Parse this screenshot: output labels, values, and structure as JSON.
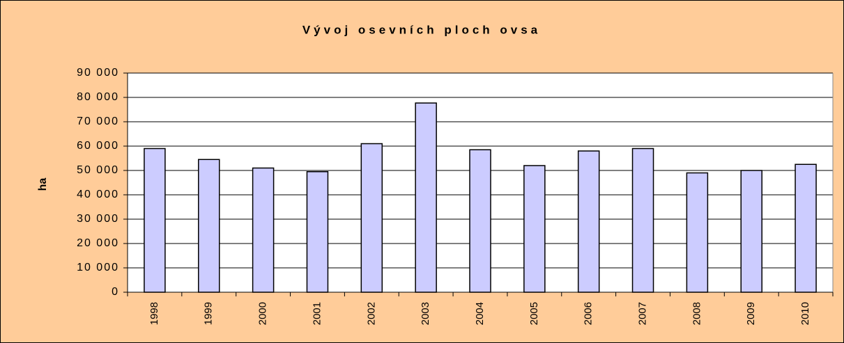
{
  "chart_data": {
    "type": "bar",
    "title": "Vývoj osevních ploch ovsa",
    "y_label": "ha",
    "categories": [
      "1998",
      "1999",
      "2000",
      "2001",
      "2002",
      "2003",
      "2004",
      "2005",
      "2006",
      "2007",
      "2008",
      "2009",
      "2010"
    ],
    "values": [
      59000,
      54500,
      51000,
      49500,
      61000,
      77700,
      58500,
      52000,
      58000,
      59000,
      49000,
      50000,
      52500
    ],
    "color": "#ccccff",
    "ylim": [
      0,
      90000
    ],
    "yticks": [
      0,
      {
        "value": 10000,
        "label": "10 000"
      },
      {
        "value": 20000,
        "label": "20 000"
      },
      {
        "value": 30000,
        "label": "30 000"
      },
      {
        "value": 40000,
        "label": "40 000"
      },
      {
        "value": 50000,
        "label": "50 000"
      },
      {
        "value": 60000,
        "label": "60 000"
      },
      {
        "value": 70000,
        "label": "70 000"
      },
      {
        "value": 80000,
        "label": "80 000"
      },
      {
        "value": 90000,
        "label": "90 000"
      }
    ],
    "grid": true
  }
}
